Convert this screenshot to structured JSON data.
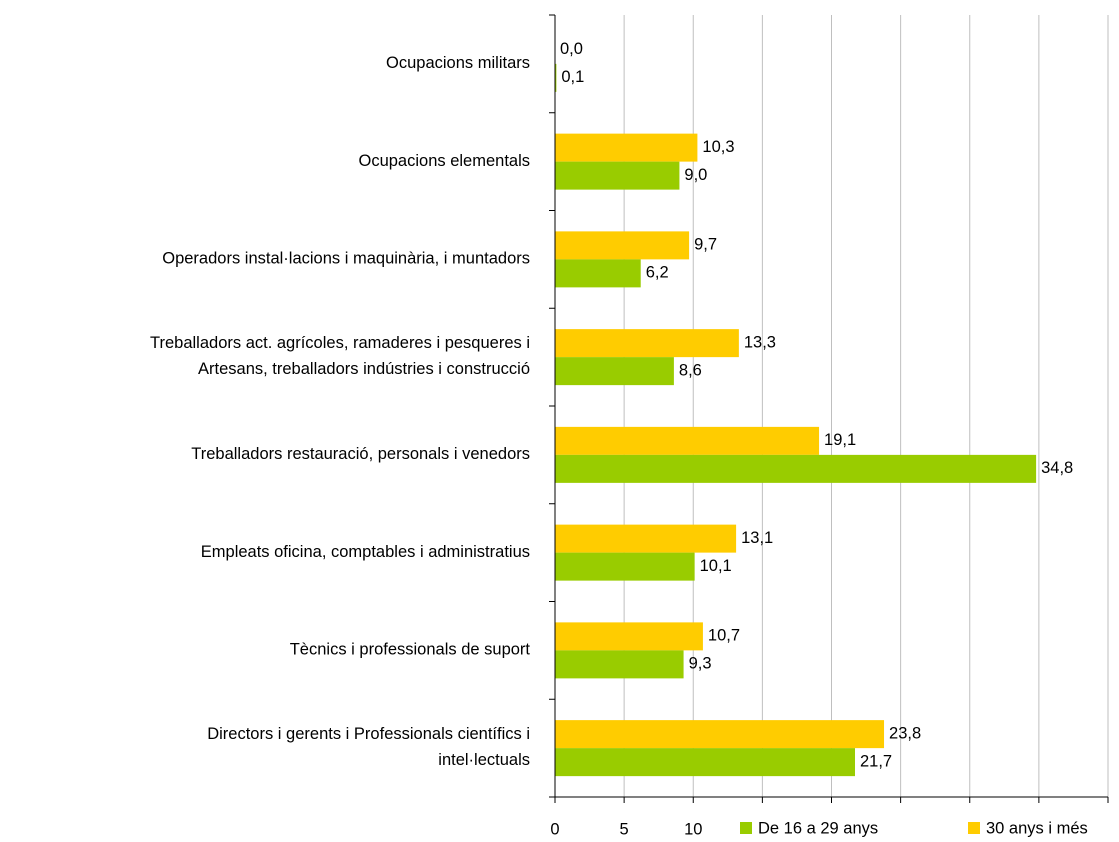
{
  "chart_data": {
    "type": "bar",
    "orientation": "horizontal",
    "categories": [
      "Ocupacions militars",
      "Ocupacions elementals",
      "Operadors instal·lacions i maquinària, i muntadors",
      "Treballadors act. agrícoles, ramaderes i pesqueres i\nArtesans, treballadors indústries i construcció",
      "Treballadors restauració, personals i venedors",
      "Empleats oficina, comptables i administratius",
      "Tècnics i professionals de suport",
      "Directors i gerents i Professionals científics i\nintel·lectuals"
    ],
    "series": [
      {
        "name": "30 anys i més",
        "color": "#ffcc00",
        "values": [
          0.0,
          10.3,
          9.7,
          13.3,
          19.1,
          13.1,
          10.7,
          23.8
        ],
        "value_labels": [
          "0,0",
          "10,3",
          "9,7",
          "13,3",
          "19,1",
          "13,1",
          "10,7",
          "23,8"
        ]
      },
      {
        "name": "De 16 a 29 anys",
        "color": "#99cc00",
        "values": [
          0.1,
          9.0,
          6.2,
          8.6,
          34.8,
          10.1,
          9.3,
          21.7
        ],
        "value_labels": [
          "0,1",
          "9,0",
          "6,2",
          "8,6",
          "34,8",
          "10,1",
          "9,3",
          "21,7"
        ]
      }
    ],
    "xlim": [
      0,
      40
    ],
    "xticks": [
      0,
      5,
      10,
      15,
      20,
      25,
      30,
      35,
      40
    ],
    "grid": true
  }
}
